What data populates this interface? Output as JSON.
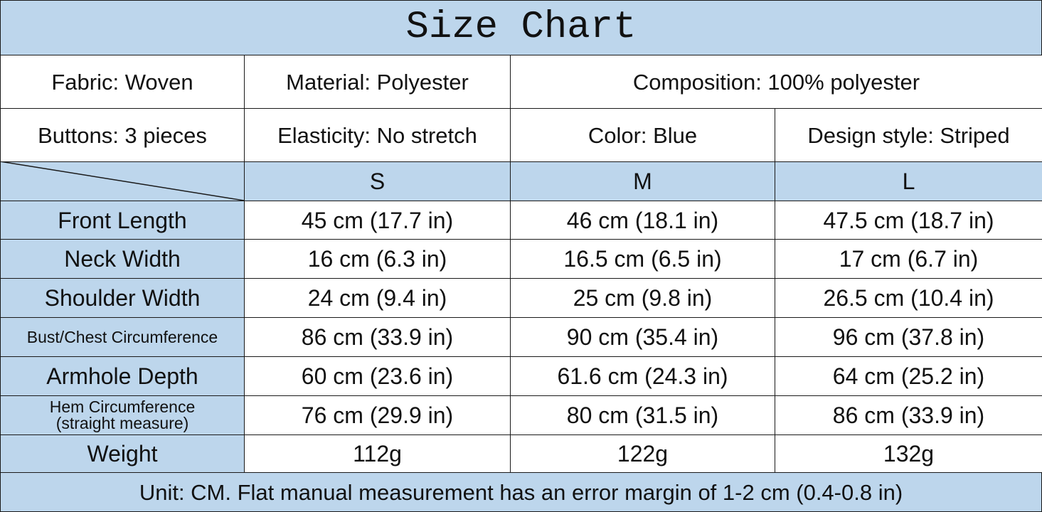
{
  "title": "Size Chart",
  "info": [
    [
      "Fabric: Woven",
      "Material: Polyester",
      "Composition: 100% polyester"
    ],
    [
      "Buttons: 3 pieces",
      "Elasticity: No stretch",
      "Color: Blue",
      "Design style: Striped"
    ]
  ],
  "table": {
    "header": [
      "S",
      "M",
      "L"
    ],
    "rows": [
      {
        "label": "Front Length",
        "cells": [
          "45 cm (17.7 in)",
          "46 cm (18.1 in)",
          "47.5 cm (18.7 in)"
        ]
      },
      {
        "label": "Neck Width",
        "cells": [
          "16 cm (6.3 in)",
          "16.5 cm (6.5 in)",
          "17 cm (6.7 in)"
        ]
      },
      {
        "label": "Shoulder Width",
        "cells": [
          "24 cm (9.4 in)",
          "25 cm (9.8 in)",
          "26.5 cm (10.4 in)"
        ]
      },
      {
        "label": "Bust/Chest Circumference",
        "cells": [
          "86 cm (33.9 in)",
          "90 cm (35.4 in)",
          "96 cm (37.8 in)"
        ]
      },
      {
        "label": "Armhole Depth",
        "cells": [
          "60 cm (23.6 in)",
          "61.6 cm (24.3 in)",
          "64 cm (25.2 in)"
        ]
      },
      {
        "label": "Hem Circumference\n(straight measure)",
        "cells": [
          "76 cm (29.9 in)",
          "80 cm (31.5 in)",
          "86 cm (33.9 in)"
        ]
      },
      {
        "label": "Weight",
        "cells": [
          "112g",
          "122g",
          "132g"
        ]
      }
    ]
  },
  "footer": "Unit: CM. Flat manual measurement has an error margin of 1-2 cm (0.4-0.8 in)"
}
